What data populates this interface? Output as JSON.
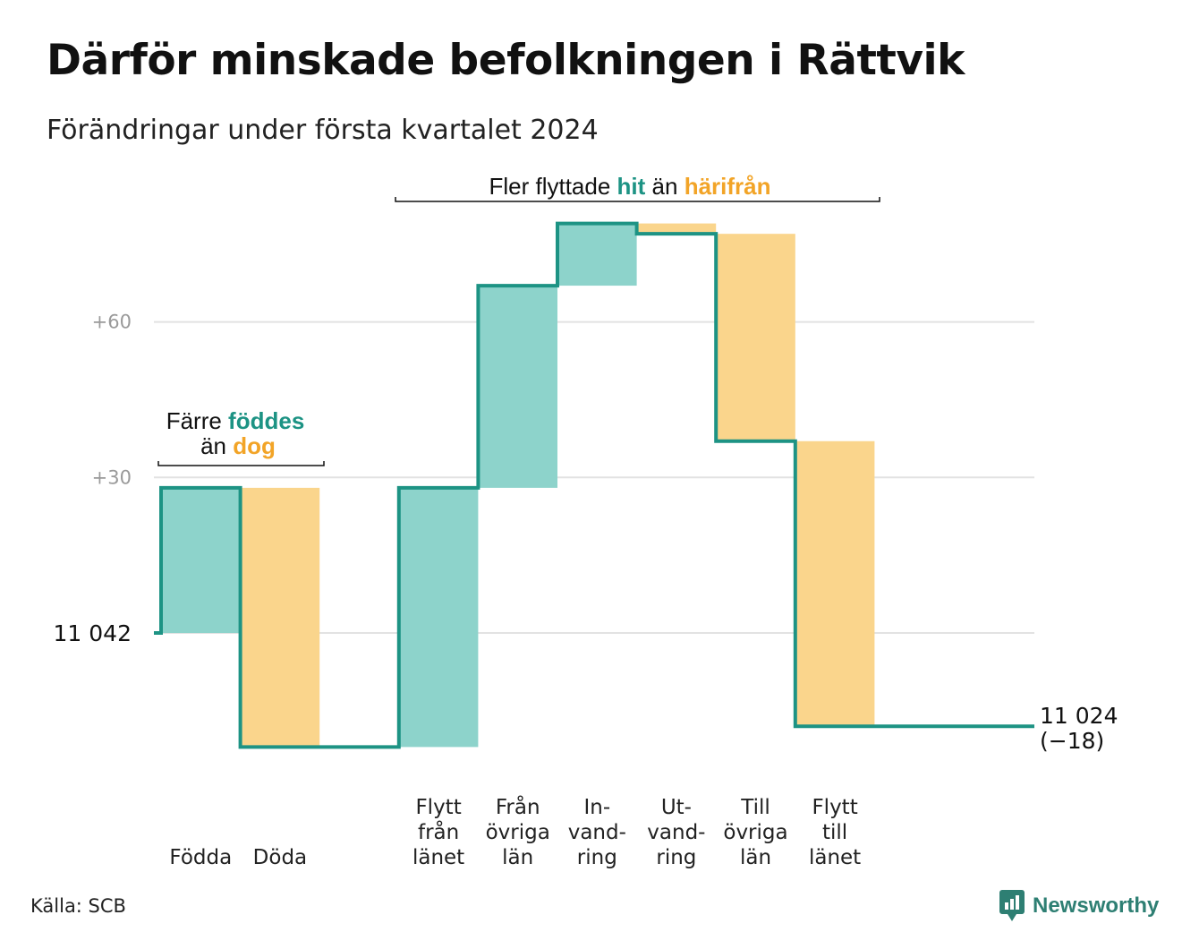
{
  "title": "Därför minskade befolkningen i Rättvik",
  "subtitle": "Förändringar under första kvartalet 2024",
  "source": "Källa: SCB",
  "brand": "Newsworthy",
  "colors": {
    "increase": "#8dd3cb",
    "decrease": "#fad58c",
    "line": "#1d9384",
    "grid": "#e2e2e2"
  },
  "chart_data": {
    "type": "bar",
    "subtype": "waterfall",
    "start": {
      "value": 11042,
      "label": "11  042"
    },
    "end": {
      "value": 11024,
      "label": "11 024",
      "change_label": "(−18)"
    },
    "yticks": [
      {
        "offset": 30,
        "label": "+30"
      },
      {
        "offset": 60,
        "label": "+60"
      }
    ],
    "ylim": [
      -25,
      85
    ],
    "items": [
      {
        "lines": [
          "Födda"
        ],
        "value": 28,
        "type": "increase"
      },
      {
        "lines": [
          "Döda"
        ],
        "value": -50,
        "type": "decrease"
      },
      {
        "lines": [],
        "value": 0,
        "type": "gap"
      },
      {
        "lines": [
          "Flytt",
          "från",
          "länet"
        ],
        "value": 50,
        "type": "increase"
      },
      {
        "lines": [
          "Från",
          "övriga",
          "län"
        ],
        "value": 39,
        "type": "increase"
      },
      {
        "lines": [
          "In-",
          "vand-",
          "ring"
        ],
        "value": 12,
        "type": "increase"
      },
      {
        "lines": [
          "Ut-",
          "vand-",
          "ring"
        ],
        "value": -2,
        "type": "decrease"
      },
      {
        "lines": [
          "Till",
          "övriga",
          "län"
        ],
        "value": -40,
        "type": "decrease"
      },
      {
        "lines": [
          "Flytt",
          "till",
          "länet"
        ],
        "value": -55,
        "type": "decrease"
      }
    ],
    "annotations": [
      {
        "parts": [
          {
            "text": "Färre",
            "style": "normal"
          },
          {
            "text": "föddes",
            "style": "green"
          }
        ],
        "parts2": [
          {
            "text": "än",
            "style": "normal"
          },
          {
            "text": "dog",
            "style": "orange"
          }
        ]
      },
      {
        "parts": [
          {
            "text": "Fler flyttade",
            "style": "normal"
          },
          {
            "text": "hit",
            "style": "green"
          },
          {
            "text": "än",
            "style": "normal"
          },
          {
            "text": "härifrån",
            "style": "orange"
          }
        ]
      }
    ]
  }
}
